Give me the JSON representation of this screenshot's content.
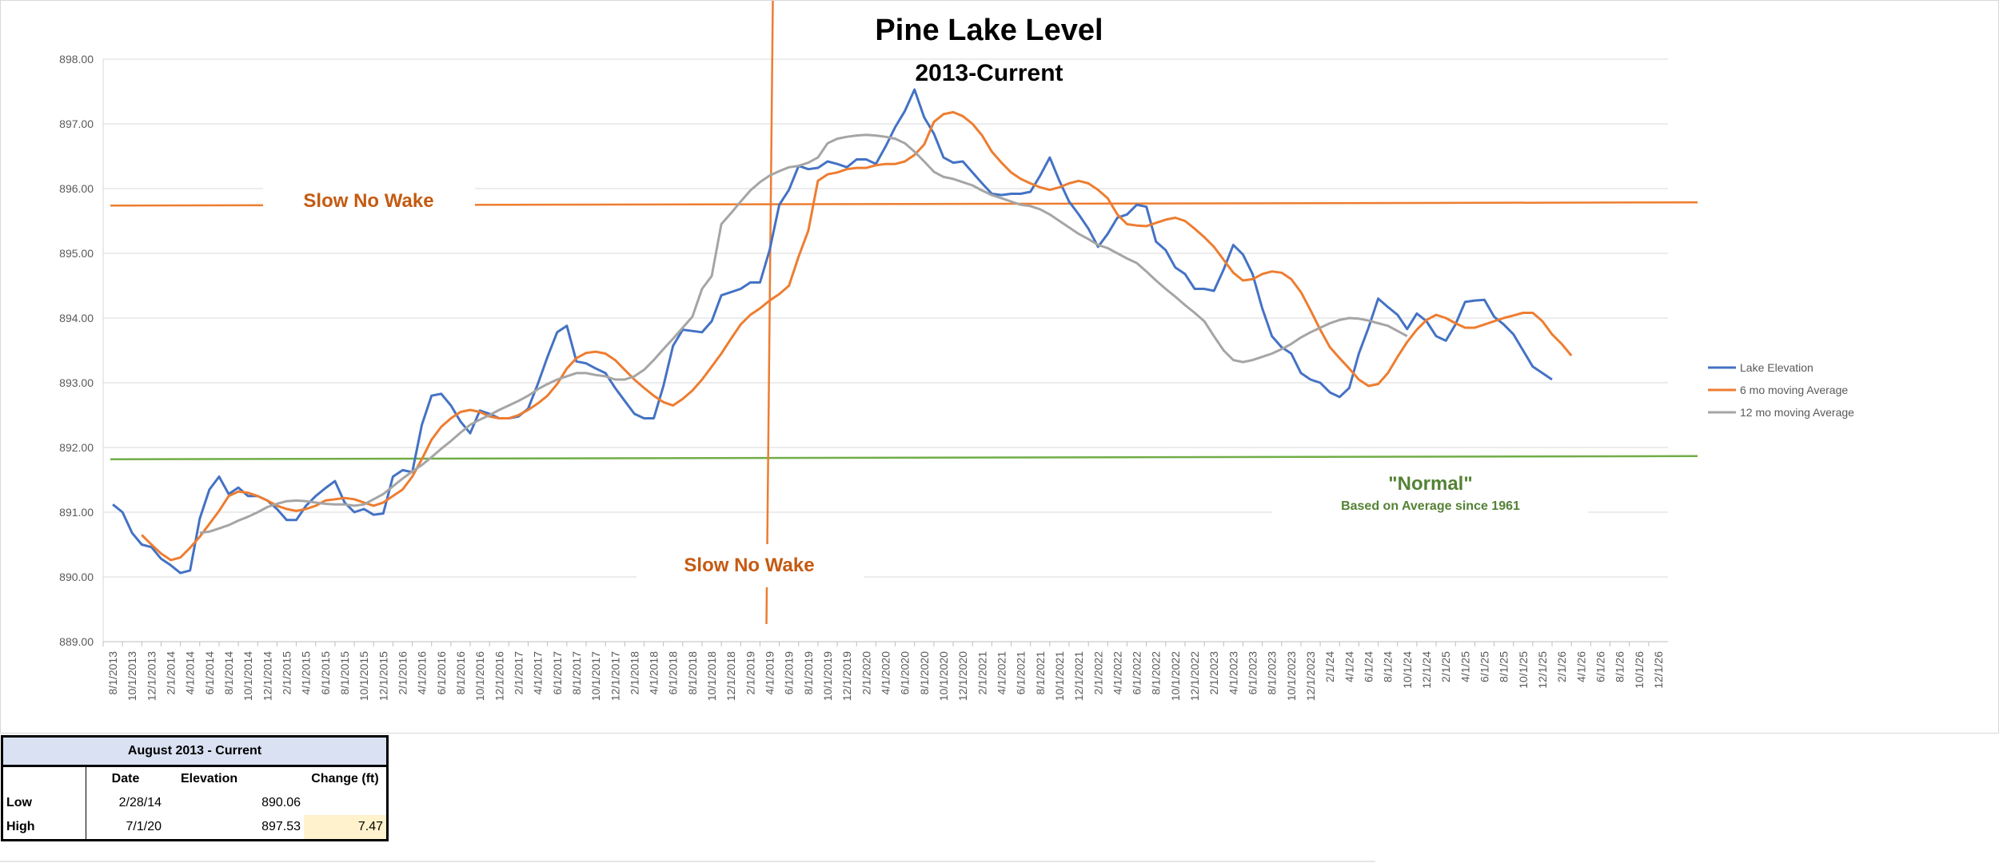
{
  "chart_data": {
    "type": "line",
    "title": "Pine Lake Level",
    "subtitle": "2013-Current",
    "ylim": [
      889.0,
      898.0
    ],
    "yticks": [
      "889.00",
      "890.00",
      "891.00",
      "892.00",
      "893.00",
      "894.00",
      "895.00",
      "896.00",
      "897.00",
      "898.00"
    ],
    "xticks": [
      "8/1/2013",
      "10/1/2013",
      "12/1/2013",
      "2/1/2014",
      "4/1/2014",
      "6/1/2014",
      "8/1/2014",
      "10/1/2014",
      "12/1/2014",
      "2/1/2015",
      "4/1/2015",
      "6/1/2015",
      "8/1/2015",
      "10/1/2015",
      "12/1/2015",
      "2/1/2016",
      "4/1/2016",
      "6/1/2016",
      "8/1/2016",
      "10/1/2016",
      "12/1/2016",
      "2/1/2017",
      "4/1/2017",
      "6/1/2017",
      "8/1/2017",
      "10/1/2017",
      "12/1/2017",
      "2/1/2018",
      "4/1/2018",
      "6/1/2018",
      "8/1/2018",
      "10/1/2018",
      "12/1/2018",
      "2/1/2019",
      "4/1/2019",
      "6/1/2019",
      "8/1/2019",
      "10/1/2019",
      "12/1/2019",
      "2/1/2020",
      "4/1/2020",
      "6/1/2020",
      "8/1/2020",
      "10/1/2020",
      "12/1/2020",
      "2/1/2021",
      "4/1/2021",
      "6/1/2021",
      "8/1/2021",
      "10/1/2021",
      "12/1/2021",
      "2/1/2022",
      "4/1/2022",
      "6/1/2022",
      "8/1/2022",
      "10/1/2022",
      "12/1/2022",
      "2/1/2023",
      "4/1/2023",
      "6/1/2023",
      "8/1/2023",
      "10/1/2023",
      "12/1/2023",
      "2/1/24",
      "4/1/24",
      "6/1/24",
      "8/1/24",
      "10/1/24",
      "12/1/24",
      "2/1/25",
      "4/1/25",
      "6/1/25",
      "8/1/25",
      "10/1/25",
      "12/1/25",
      "2/1/26",
      "4/1/26",
      "6/1/26",
      "8/1/26",
      "10/1/26",
      "12/1/26"
    ],
    "series": [
      {
        "name": "Lake Elevation",
        "color": "#4472c4",
        "start_index": 0,
        "values": [
          891.12,
          891.0,
          890.68,
          890.5,
          890.46,
          890.28,
          890.18,
          890.06,
          890.1,
          890.9,
          891.35,
          891.55,
          891.28,
          891.38,
          891.25,
          891.25,
          891.18,
          891.05,
          890.88,
          890.88,
          891.1,
          891.25,
          891.37,
          891.48,
          891.15,
          891.0,
          891.05,
          890.96,
          890.98,
          891.55,
          891.65,
          891.62,
          892.35,
          892.8,
          892.83,
          892.65,
          892.4,
          892.22,
          892.57,
          892.52,
          892.45,
          892.45,
          892.48,
          892.6,
          892.98,
          893.4,
          893.78,
          893.88,
          893.33,
          893.3,
          893.22,
          893.15,
          892.92,
          892.72,
          892.52,
          892.45,
          892.45,
          892.95,
          893.57,
          893.82,
          893.8,
          893.78,
          893.95,
          894.35,
          894.4,
          894.45,
          894.55,
          894.55,
          895.05,
          895.75,
          895.98,
          896.35,
          896.3,
          896.32,
          896.42,
          896.38,
          896.33,
          896.45,
          896.45,
          896.38,
          896.65,
          896.95,
          897.2,
          897.53,
          897.1,
          896.85,
          896.48,
          896.4,
          896.42,
          896.25,
          896.08,
          895.92,
          895.9,
          895.92,
          895.92,
          895.95,
          896.2,
          896.48,
          896.12,
          895.8,
          895.6,
          895.38,
          895.1,
          895.3,
          895.55,
          895.6,
          895.75,
          895.72,
          895.18,
          895.05,
          894.78,
          894.68,
          894.45,
          894.45,
          894.42,
          894.75,
          895.13,
          894.98,
          894.68,
          894.15,
          893.72,
          893.55,
          893.45,
          893.15,
          893.05,
          893.0,
          892.85,
          892.78,
          892.92,
          893.45,
          893.85,
          894.3,
          894.17,
          894.05,
          893.83,
          894.07,
          893.95,
          893.72,
          893.65,
          893.9,
          894.25,
          894.27,
          894.28,
          894.02,
          893.9,
          893.75,
          893.5,
          893.25,
          893.15,
          893.05
        ]
      },
      {
        "name": "6 mo moving Average",
        "color": "#ed7d31",
        "start_index": 3,
        "values": [
          890.65,
          890.5,
          890.36,
          890.26,
          890.3,
          890.45,
          890.62,
          890.82,
          891.02,
          891.25,
          891.32,
          891.3,
          891.25,
          891.18,
          891.1,
          891.05,
          891.02,
          891.05,
          891.1,
          891.18,
          891.2,
          891.22,
          891.2,
          891.15,
          891.1,
          891.15,
          891.25,
          891.35,
          891.55,
          891.82,
          892.12,
          892.32,
          892.45,
          892.55,
          892.58,
          892.55,
          892.48,
          892.45,
          892.45,
          892.5,
          892.58,
          892.68,
          892.8,
          892.98,
          893.22,
          893.38,
          893.46,
          893.48,
          893.45,
          893.35,
          893.2,
          893.05,
          892.92,
          892.8,
          892.7,
          892.65,
          892.75,
          892.88,
          893.05,
          893.25,
          893.45,
          893.68,
          893.9,
          894.05,
          894.15,
          894.27,
          894.37,
          894.5,
          894.95,
          895.35,
          896.12,
          896.22,
          896.25,
          896.3,
          896.32,
          896.32,
          896.36,
          896.38,
          896.38,
          896.42,
          896.52,
          896.68,
          897.03,
          897.15,
          897.18,
          897.12,
          897.0,
          896.82,
          896.57,
          896.4,
          896.25,
          896.15,
          896.08,
          896.02,
          895.98,
          896.02,
          896.08,
          896.12,
          896.08,
          895.98,
          895.85,
          895.6,
          895.45,
          895.43,
          895.42,
          895.47,
          895.52,
          895.55,
          895.5,
          895.38,
          895.25,
          895.1,
          894.9,
          894.7,
          894.58,
          894.6,
          894.68,
          894.72,
          894.7,
          894.6,
          894.4,
          894.12,
          893.82,
          893.55,
          893.38,
          893.22,
          893.05,
          892.95,
          892.98,
          893.15,
          893.4,
          893.63,
          893.82,
          893.97,
          894.05,
          894.0,
          893.92,
          893.85,
          893.85,
          893.9,
          893.95,
          894.0,
          894.04,
          894.08,
          894.08,
          893.95,
          893.75,
          893.6,
          893.42
        ]
      },
      {
        "name": "12 mo moving Average",
        "color": "#a5a5a5",
        "start_index": 9,
        "values": [
          890.68,
          890.7,
          890.75,
          890.8,
          890.87,
          890.93,
          891.0,
          891.08,
          891.13,
          891.17,
          891.18,
          891.17,
          891.15,
          891.13,
          891.12,
          891.12,
          891.1,
          891.12,
          891.2,
          891.28,
          891.4,
          891.52,
          891.63,
          891.73,
          891.85,
          891.98,
          892.1,
          892.23,
          892.35,
          892.43,
          892.5,
          892.58,
          892.65,
          892.72,
          892.8,
          892.9,
          892.98,
          893.05,
          893.1,
          893.15,
          893.15,
          893.12,
          893.1,
          893.05,
          893.05,
          893.1,
          893.2,
          893.35,
          893.52,
          893.68,
          893.85,
          894.02,
          894.45,
          894.65,
          895.45,
          895.62,
          895.8,
          895.97,
          896.1,
          896.2,
          896.27,
          896.33,
          896.35,
          896.4,
          896.48,
          896.7,
          896.77,
          896.8,
          896.82,
          896.83,
          896.82,
          896.8,
          896.77,
          896.7,
          896.57,
          896.42,
          896.26,
          896.18,
          896.15,
          896.1,
          896.05,
          895.97,
          895.9,
          895.85,
          895.8,
          895.75,
          895.73,
          895.68,
          895.6,
          895.5,
          895.4,
          895.3,
          895.22,
          895.13,
          895.08,
          895.0,
          894.92,
          894.85,
          894.72,
          894.58,
          894.45,
          894.33,
          894.2,
          894.08,
          893.95,
          893.72,
          893.5,
          893.35,
          893.32,
          893.35,
          893.4,
          893.45,
          893.52,
          893.6,
          893.7,
          893.78,
          893.85,
          893.92,
          893.97,
          894.0,
          893.99,
          893.96,
          893.92,
          893.88,
          893.8,
          893.72
        ]
      }
    ],
    "reference_lines": [
      {
        "name": "slow-no-wake-level",
        "value": 895.75,
        "color": "#ed7d31"
      },
      {
        "name": "normal-level",
        "value": 891.83,
        "color": "#70ad47"
      }
    ],
    "vertical_marker": {
      "index": 68,
      "color": "#ed7d31"
    },
    "annotations": {
      "slow_no_wake_top": "Slow No Wake",
      "slow_no_wake_mid": "Slow No Wake",
      "normal": "\"Normal\"",
      "normal_sub": "Based on Average since 1961"
    },
    "legend_position": "right",
    "grid": true
  },
  "table": {
    "caption": "August 2013 - Current",
    "headers": {
      "date": "Date",
      "elevation": "Elevation",
      "change": "Change (ft)"
    },
    "low": {
      "label": "Low",
      "date": "2/28/14",
      "elevation": "890.06"
    },
    "high": {
      "label": "High",
      "date": "7/1/20",
      "elevation": "897.53",
      "change": "7.47"
    }
  }
}
